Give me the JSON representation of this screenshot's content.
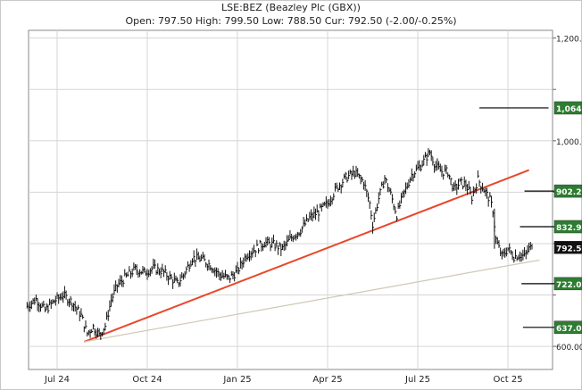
{
  "chart_data": {
    "type": "line",
    "title": "LSE:BEZ (Beazley Plc (GBX))",
    "subtitle": "Open: 797.50 High: 799.50 Low: 788.50 Cur: 792.50 (-2.00/-0.25%)",
    "x_tick_labels": [
      "Jul 24",
      "Oct 24",
      "Jan 25",
      "Apr 25",
      "Jul 25",
      "Oct 25"
    ],
    "y_tick_labels": [
      {
        "value": 1200,
        "label": "1,200."
      },
      {
        "value": 1000,
        "label": "1,000."
      },
      {
        "value": 600,
        "label": "600.00"
      }
    ],
    "ylim": [
      555,
      1215
    ],
    "x_range_months": [
      0,
      15.4
    ],
    "grid": true,
    "badges": [
      {
        "value": 1064,
        "label": "1,064.",
        "color": "#2e7d32"
      },
      {
        "value": 902.2,
        "label": "902.20",
        "color": "#2e7d32"
      },
      {
        "value": 832.9,
        "label": "832.90",
        "color": "#2e7d32"
      },
      {
        "value": 792.5,
        "label": "792.50",
        "color": "#111111"
      },
      {
        "value": 722,
        "label": "722.00",
        "color": "#2e7d32"
      },
      {
        "value": 637,
        "label": "637.00",
        "color": "#2e7d32"
      }
    ],
    "target_lines": [
      {
        "value": 1064,
        "x": [
          14.05,
          16.35
        ]
      },
      {
        "value": 902.2,
        "x": [
          15.55,
          16.95
        ]
      },
      {
        "value": 832.9,
        "x": [
          15.4,
          16.6
        ]
      },
      {
        "value": 722,
        "x": [
          15.45,
          16.75
        ]
      },
      {
        "value": 637,
        "x": [
          15.5,
          16.8
        ]
      }
    ],
    "trend_lines": [
      {
        "name": "red trend",
        "color": "#e8472b",
        "from": [
          0.9,
          609
        ],
        "to": [
          15.7,
          943
        ]
      },
      {
        "name": "support trend",
        "color": "#cfc8b4",
        "from": [
          0.9,
          609
        ],
        "to": [
          16.05,
          768
        ]
      }
    ],
    "price_series": [
      [
        -1.0,
        678
      ],
      [
        -0.7,
        692
      ],
      [
        -0.4,
        670
      ],
      [
        -0.1,
        688
      ],
      [
        0.2,
        700
      ],
      [
        0.5,
        686
      ],
      [
        0.8,
        660
      ],
      [
        1.0,
        625
      ],
      [
        1.2,
        638
      ],
      [
        1.4,
        622
      ],
      [
        1.6,
        640
      ],
      [
        1.8,
        690
      ],
      [
        2.0,
        718
      ],
      [
        2.3,
        736
      ],
      [
        2.6,
        750
      ],
      [
        2.9,
        744
      ],
      [
        3.2,
        752
      ],
      [
        3.5,
        746
      ],
      [
        3.8,
        732
      ],
      [
        4.0,
        722
      ],
      [
        4.2,
        738
      ],
      [
        4.5,
        772
      ],
      [
        4.8,
        770
      ],
      [
        5.1,
        758
      ],
      [
        5.4,
        740
      ],
      [
        5.7,
        732
      ],
      [
        6.0,
        746
      ],
      [
        6.3,
        778
      ],
      [
        6.6,
        790
      ],
      [
        6.9,
        802
      ],
      [
        7.2,
        798
      ],
      [
        7.5,
        790
      ],
      [
        7.8,
        812
      ],
      [
        8.1,
        826
      ],
      [
        8.4,
        850
      ],
      [
        8.7,
        862
      ],
      [
        9.0,
        878
      ],
      [
        9.3,
        908
      ],
      [
        9.6,
        928
      ],
      [
        9.9,
        938
      ],
      [
        10.2,
        920
      ],
      [
        10.4,
        878
      ],
      [
        10.5,
        838
      ],
      [
        10.7,
        888
      ],
      [
        10.9,
        928
      ],
      [
        11.1,
        896
      ],
      [
        11.3,
        856
      ],
      [
        11.5,
        892
      ],
      [
        11.8,
        934
      ],
      [
        12.1,
        952
      ],
      [
        12.4,
        978
      ],
      [
        12.6,
        950
      ],
      [
        12.8,
        940
      ],
      [
        13.0,
        940
      ],
      [
        13.2,
        905
      ],
      [
        13.4,
        918
      ],
      [
        13.6,
        915
      ],
      [
        13.8,
        890
      ],
      [
        14.0,
        925
      ],
      [
        14.2,
        905
      ],
      [
        14.4,
        885
      ],
      [
        14.5,
        865
      ],
      [
        14.6,
        808
      ],
      [
        14.8,
        775
      ],
      [
        15.0,
        790
      ],
      [
        15.2,
        775
      ],
      [
        15.4,
        778
      ],
      [
        15.55,
        775
      ],
      [
        15.7,
        790
      ],
      [
        15.8,
        792.5
      ]
    ]
  }
}
